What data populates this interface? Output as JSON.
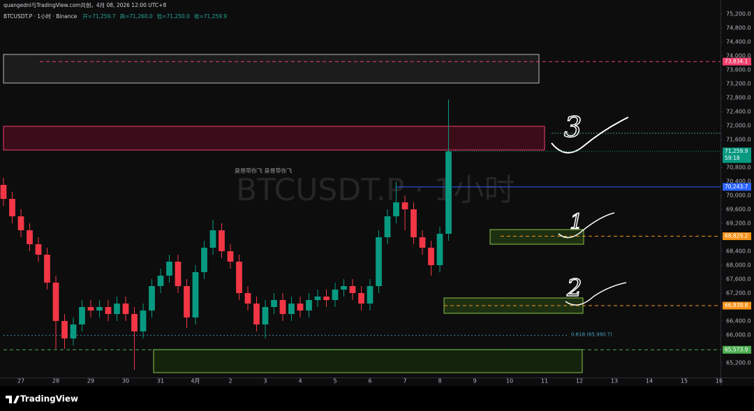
{
  "chart_data": {
    "type": "candlestick",
    "subtitle": "quangednl与TradingView.com共创，4月 08, 2026 12:00 UTC+8",
    "title": "BTCUSDT.P · 1小时 · Binance",
    "ohlc_legend": [
      "开=71,259.7",
      "高=71,260.0",
      "低=71,250.0",
      "收=71,259.9"
    ],
    "watermark": "BTCUSDT.P · 1小时",
    "note": "泉哥带你飞  泉哥带你飞",
    "up_color": "#089981",
    "down_color": "#f23645",
    "x": [
      -0.5,
      -0.25,
      0,
      0.25,
      0.5,
      0.75,
      1,
      1.25,
      1.5,
      1.75,
      2,
      2.25,
      2.5,
      2.75,
      3,
      3.25,
      3.5,
      3.75,
      4,
      4.25,
      4.5,
      4.75,
      5,
      5.25,
      5.5,
      5.75,
      6,
      6.25,
      6.5,
      6.75,
      7,
      7.25,
      7.5,
      7.75,
      8,
      8.25,
      8.5,
      8.75,
      9,
      9.25,
      9.5,
      9.75,
      10,
      10.25,
      10.5,
      10.75,
      11,
      11.25,
      11.5,
      11.75,
      12,
      12.25
    ],
    "open": [
      70300,
      69900,
      69400,
      69000,
      68600,
      68300,
      67500,
      66400,
      65900,
      66300,
      66800,
      66700,
      66800,
      66600,
      66900,
      66600,
      66100,
      66700,
      67400,
      67700,
      68100,
      67400,
      66500,
      67800,
      68500,
      69000,
      68400,
      68100,
      67200,
      66900,
      66300,
      66800,
      67000,
      66600,
      66900,
      66700,
      67000,
      67100,
      67000,
      67300,
      67400,
      67200,
      66900,
      67400,
      68800,
      69400,
      69800,
      69600,
      68800,
      68500,
      68000,
      68900
    ],
    "high": [
      70500,
      70100,
      69600,
      69200,
      68800,
      68500,
      67700,
      66600,
      66500,
      67000,
      67000,
      67000,
      67000,
      67100,
      67100,
      66800,
      66900,
      67600,
      67900,
      68300,
      68300,
      67600,
      68000,
      68700,
      69300,
      69200,
      68600,
      68300,
      67400,
      67100,
      67000,
      67200,
      67200,
      67100,
      67100,
      67200,
      67300,
      67300,
      67500,
      67600,
      67600,
      67400,
      67600,
      69000,
      69600,
      70400,
      70000,
      69800,
      69000,
      68700,
      69100,
      72750
    ],
    "low": [
      69700,
      69200,
      68800,
      68400,
      68100,
      67300,
      65600,
      65600,
      65700,
      66100,
      66500,
      66500,
      66400,
      66400,
      66400,
      65000,
      65900,
      66500,
      67200,
      67500,
      67200,
      66200,
      66300,
      67600,
      68300,
      68200,
      67900,
      67000,
      66700,
      66100,
      65900,
      66600,
      66400,
      66400,
      66500,
      66500,
      66800,
      66800,
      66800,
      67100,
      67000,
      66700,
      66700,
      67200,
      68600,
      69200,
      69000,
      68600,
      68300,
      67700,
      67800,
      68700
    ],
    "close": [
      69900,
      69400,
      69000,
      68600,
      68300,
      67500,
      66400,
      65900,
      66300,
      66800,
      66700,
      66800,
      66600,
      66900,
      66600,
      66100,
      66700,
      67400,
      67700,
      68100,
      67400,
      66500,
      67800,
      68500,
      69000,
      68400,
      68100,
      67200,
      66900,
      66300,
      66800,
      67000,
      66600,
      66900,
      66700,
      67000,
      67100,
      67000,
      67300,
      67400,
      67200,
      66900,
      67400,
      68800,
      69400,
      69800,
      69600,
      68800,
      68500,
      68000,
      68900,
      71259.9
    ],
    "xlim": [
      -0.6,
      20.04
    ],
    "xticks": [
      {
        "value": 0,
        "label": "27"
      },
      {
        "value": 1,
        "label": "28"
      },
      {
        "value": 2,
        "label": "29"
      },
      {
        "value": 3,
        "label": "30"
      },
      {
        "value": 4,
        "label": "31"
      },
      {
        "value": 5,
        "label": "4月"
      },
      {
        "value": 6,
        "label": "2"
      },
      {
        "value": 7,
        "label": "3"
      },
      {
        "value": 8,
        "label": "4"
      },
      {
        "value": 9,
        "label": "5"
      },
      {
        "value": 10,
        "label": "6"
      },
      {
        "value": 11,
        "label": "7"
      },
      {
        "value": 12,
        "label": "8"
      },
      {
        "value": 13,
        "label": "9"
      },
      {
        "value": 14,
        "label": "10"
      },
      {
        "value": 15,
        "label": "11"
      },
      {
        "value": 16,
        "label": "12"
      },
      {
        "value": 17,
        "label": "13"
      },
      {
        "value": 18,
        "label": "14"
      },
      {
        "value": 19,
        "label": "15"
      },
      {
        "value": 20,
        "label": "16"
      }
    ],
    "ylim": [
      64780,
      75600
    ],
    "yticks": [
      {
        "value": 65200,
        "label": "65,200.0"
      },
      {
        "value": 65600,
        "label": "65,600.0"
      },
      {
        "value": 66000,
        "label": "66,000.0"
      },
      {
        "value": 66400,
        "label": "66,400.0"
      },
      {
        "value": 66800,
        "label": "66,800.0"
      },
      {
        "value": 67200,
        "label": "67,200.0"
      },
      {
        "value": 67600,
        "label": "67,600.0"
      },
      {
        "value": 68000,
        "label": "68,000.0"
      },
      {
        "value": 68400,
        "label": "68,400.0"
      },
      {
        "value": 68800,
        "label": "68,800.0"
      },
      {
        "value": 69200,
        "label": "69,200.0"
      },
      {
        "value": 69600,
        "label": "69,600.0"
      },
      {
        "value": 70000,
        "label": "70,000.0"
      },
      {
        "value": 70400,
        "label": "70,400.0"
      },
      {
        "value": 70800,
        "label": "70,800.0"
      },
      {
        "value": 71200,
        "label": "71,200.0"
      },
      {
        "value": 71600,
        "label": "71,600.0"
      },
      {
        "value": 72000,
        "label": "72,000.0"
      },
      {
        "value": 72400,
        "label": "72,400.0"
      },
      {
        "value": 72800,
        "label": "72,800.0"
      },
      {
        "value": 73200,
        "label": "73,200.0"
      },
      {
        "value": 73600,
        "label": "73,600.0"
      },
      {
        "value": 74000,
        "label": "74,000.0"
      },
      {
        "value": 74400,
        "label": "74,400.0"
      },
      {
        "value": 74800,
        "label": "74,800.0"
      },
      {
        "value": 75200,
        "label": "75,200.0"
      }
    ],
    "levels": [
      {
        "value": 73834.1,
        "label": "73,834.1",
        "color": "#f23f6e"
      },
      {
        "value": 71259.9,
        "label": "71,259.9",
        "color": "#089981"
      },
      {
        "value": 70243.7,
        "label": "70,243.7",
        "color": "#2962ff"
      },
      {
        "value": 68829.2,
        "label": "68,829.2",
        "color": "#f7931a"
      },
      {
        "value": 66839.8,
        "label": "66,839.8",
        "color": "#f7931a"
      },
      {
        "value": 65573.9,
        "label": "65,573.9",
        "color": "#4caf50"
      }
    ],
    "countdown": "59:18",
    "fib": {
      "value": 65990.7,
      "label": "0.618 (65,990.7)"
    },
    "annotations": [
      "3",
      "1",
      "2"
    ]
  },
  "footer": {
    "brand": "TradingView"
  }
}
